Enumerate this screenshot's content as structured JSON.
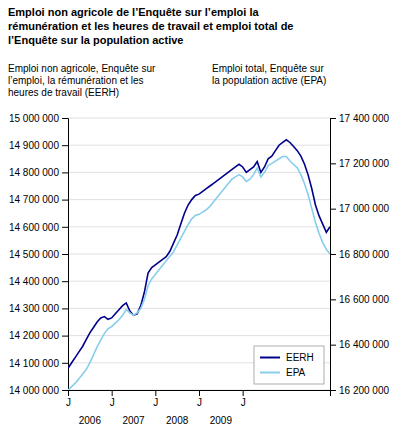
{
  "chart_data": {
    "type": "line",
    "title": "Emploi non agricole de l’Enquête sur l’emploi la\nrémunération et les heures de travail et emploi total de\nl’Enquête sur la population active",
    "y_label": "Emploi non agricole, Enquête sur\nl’emploi, la rémunération et les\nheures de travail (EERH)",
    "y2_label": "Emploi total, Enquête sur\nla population active (EPA)",
    "x": [
      0,
      1,
      2,
      3,
      4,
      5,
      6,
      7,
      8,
      9,
      10,
      11,
      12,
      13,
      14,
      15,
      16,
      17,
      18,
      19,
      20,
      21,
      22,
      23,
      24,
      25,
      26,
      27,
      28,
      29,
      30,
      31,
      32,
      33,
      34,
      35,
      36,
      37,
      38,
      39,
      40,
      41,
      42,
      43,
      44,
      45,
      46,
      47,
      48,
      49,
      50,
      51,
      52,
      53,
      54,
      55,
      56,
      57,
      58,
      59,
      60,
      61,
      62,
      63,
      64,
      65,
      66,
      67,
      68,
      69,
      70,
      71,
      72
    ],
    "xlim": [
      0,
      72
    ],
    "xticks": [
      {
        "value": 0,
        "label": "J"
      },
      {
        "value": 12,
        "label": "J"
      },
      {
        "value": 24,
        "label": "J"
      },
      {
        "value": 36,
        "label": "J"
      },
      {
        "value": 48,
        "label": "J"
      }
    ],
    "ylim": [
      14000000,
      15000000
    ],
    "yticks": [
      {
        "value": 14000000,
        "label": "14 000 000"
      },
      {
        "value": 14100000,
        "label": "14 100 000"
      },
      {
        "value": 14200000,
        "label": "14 200 000"
      },
      {
        "value": 14300000,
        "label": "14 300 000"
      },
      {
        "value": 14400000,
        "label": "14 400 000"
      },
      {
        "value": 14500000,
        "label": "14 500 000"
      },
      {
        "value": 14600000,
        "label": "14 600 000"
      },
      {
        "value": 14700000,
        "label": "14 700 000"
      },
      {
        "value": 14800000,
        "label": "14 800 000"
      },
      {
        "value": 14900000,
        "label": "14 900 000"
      },
      {
        "value": 15000000,
        "label": "15 000 000"
      }
    ],
    "y2lim": [
      16200000,
      17400000
    ],
    "y2ticks": [
      {
        "value": 16200000,
        "label": "16 200 000"
      },
      {
        "value": 16400000,
        "label": "16 400 000"
      },
      {
        "value": 16600000,
        "label": "16 600 000"
      },
      {
        "value": 16800000,
        "label": "16 800 000"
      },
      {
        "value": 17000000,
        "label": "17 000 000"
      },
      {
        "value": 17200000,
        "label": "17 200 000"
      },
      {
        "value": 17400000,
        "label": "17 400 000"
      }
    ],
    "annotations": [
      {
        "text": "2006",
        "x": 6
      },
      {
        "text": "2007",
        "x": 18
      },
      {
        "text": "2008",
        "x": 30
      },
      {
        "text": "2009",
        "x": 42
      }
    ],
    "grid": true,
    "legend": "lower right",
    "series": [
      {
        "name": "EERH",
        "color": "#00008B",
        "axis": "y",
        "values": [
          14080000,
          14100000,
          14120000,
          14140000,
          14160000,
          14185000,
          14210000,
          14230000,
          14250000,
          14265000,
          14270000,
          14260000,
          14265000,
          14280000,
          14295000,
          14310000,
          14320000,
          14290000,
          14275000,
          14280000,
          14310000,
          14360000,
          14430000,
          14450000,
          14460000,
          14470000,
          14480000,
          14490000,
          14510000,
          14540000,
          14570000,
          14610000,
          14650000,
          14680000,
          14700000,
          14715000,
          14720000,
          14730000,
          14740000,
          14750000,
          14760000,
          14770000,
          14780000,
          14790000,
          14800000,
          14810000,
          14820000,
          14830000,
          14820000,
          14800000,
          14810000,
          14820000,
          14840000,
          14800000,
          14820000,
          14850000,
          14860000,
          14880000,
          14900000,
          14910000,
          14920000,
          14910000,
          14895000,
          14880000,
          14860000,
          14830000,
          14790000,
          14740000,
          14680000,
          14640000,
          14610000,
          14580000,
          14600000
        ]
      },
      {
        "name": "EPA",
        "color": "#87CEEB",
        "axis": "y2",
        "values": [
          16200000,
          16215000,
          16230000,
          16250000,
          16270000,
          16290000,
          16320000,
          16355000,
          16390000,
          16420000,
          16450000,
          16470000,
          16480000,
          16495000,
          16510000,
          16530000,
          16555000,
          16540000,
          16530000,
          16540000,
          16560000,
          16600000,
          16660000,
          16690000,
          16710000,
          16730000,
          16750000,
          16770000,
          16790000,
          16810000,
          16840000,
          16870000,
          16900000,
          16930000,
          16955000,
          16970000,
          16975000,
          16985000,
          16995000,
          17010000,
          17030000,
          17050000,
          17070000,
          17090000,
          17110000,
          17130000,
          17140000,
          17150000,
          17140000,
          17120000,
          17130000,
          17150000,
          17180000,
          17140000,
          17160000,
          17190000,
          17200000,
          17210000,
          17220000,
          17230000,
          17230000,
          17210000,
          17195000,
          17180000,
          17150000,
          17110000,
          17060000,
          17000000,
          16940000,
          16890000,
          16850000,
          16820000,
          16800000
        ]
      }
    ]
  }
}
